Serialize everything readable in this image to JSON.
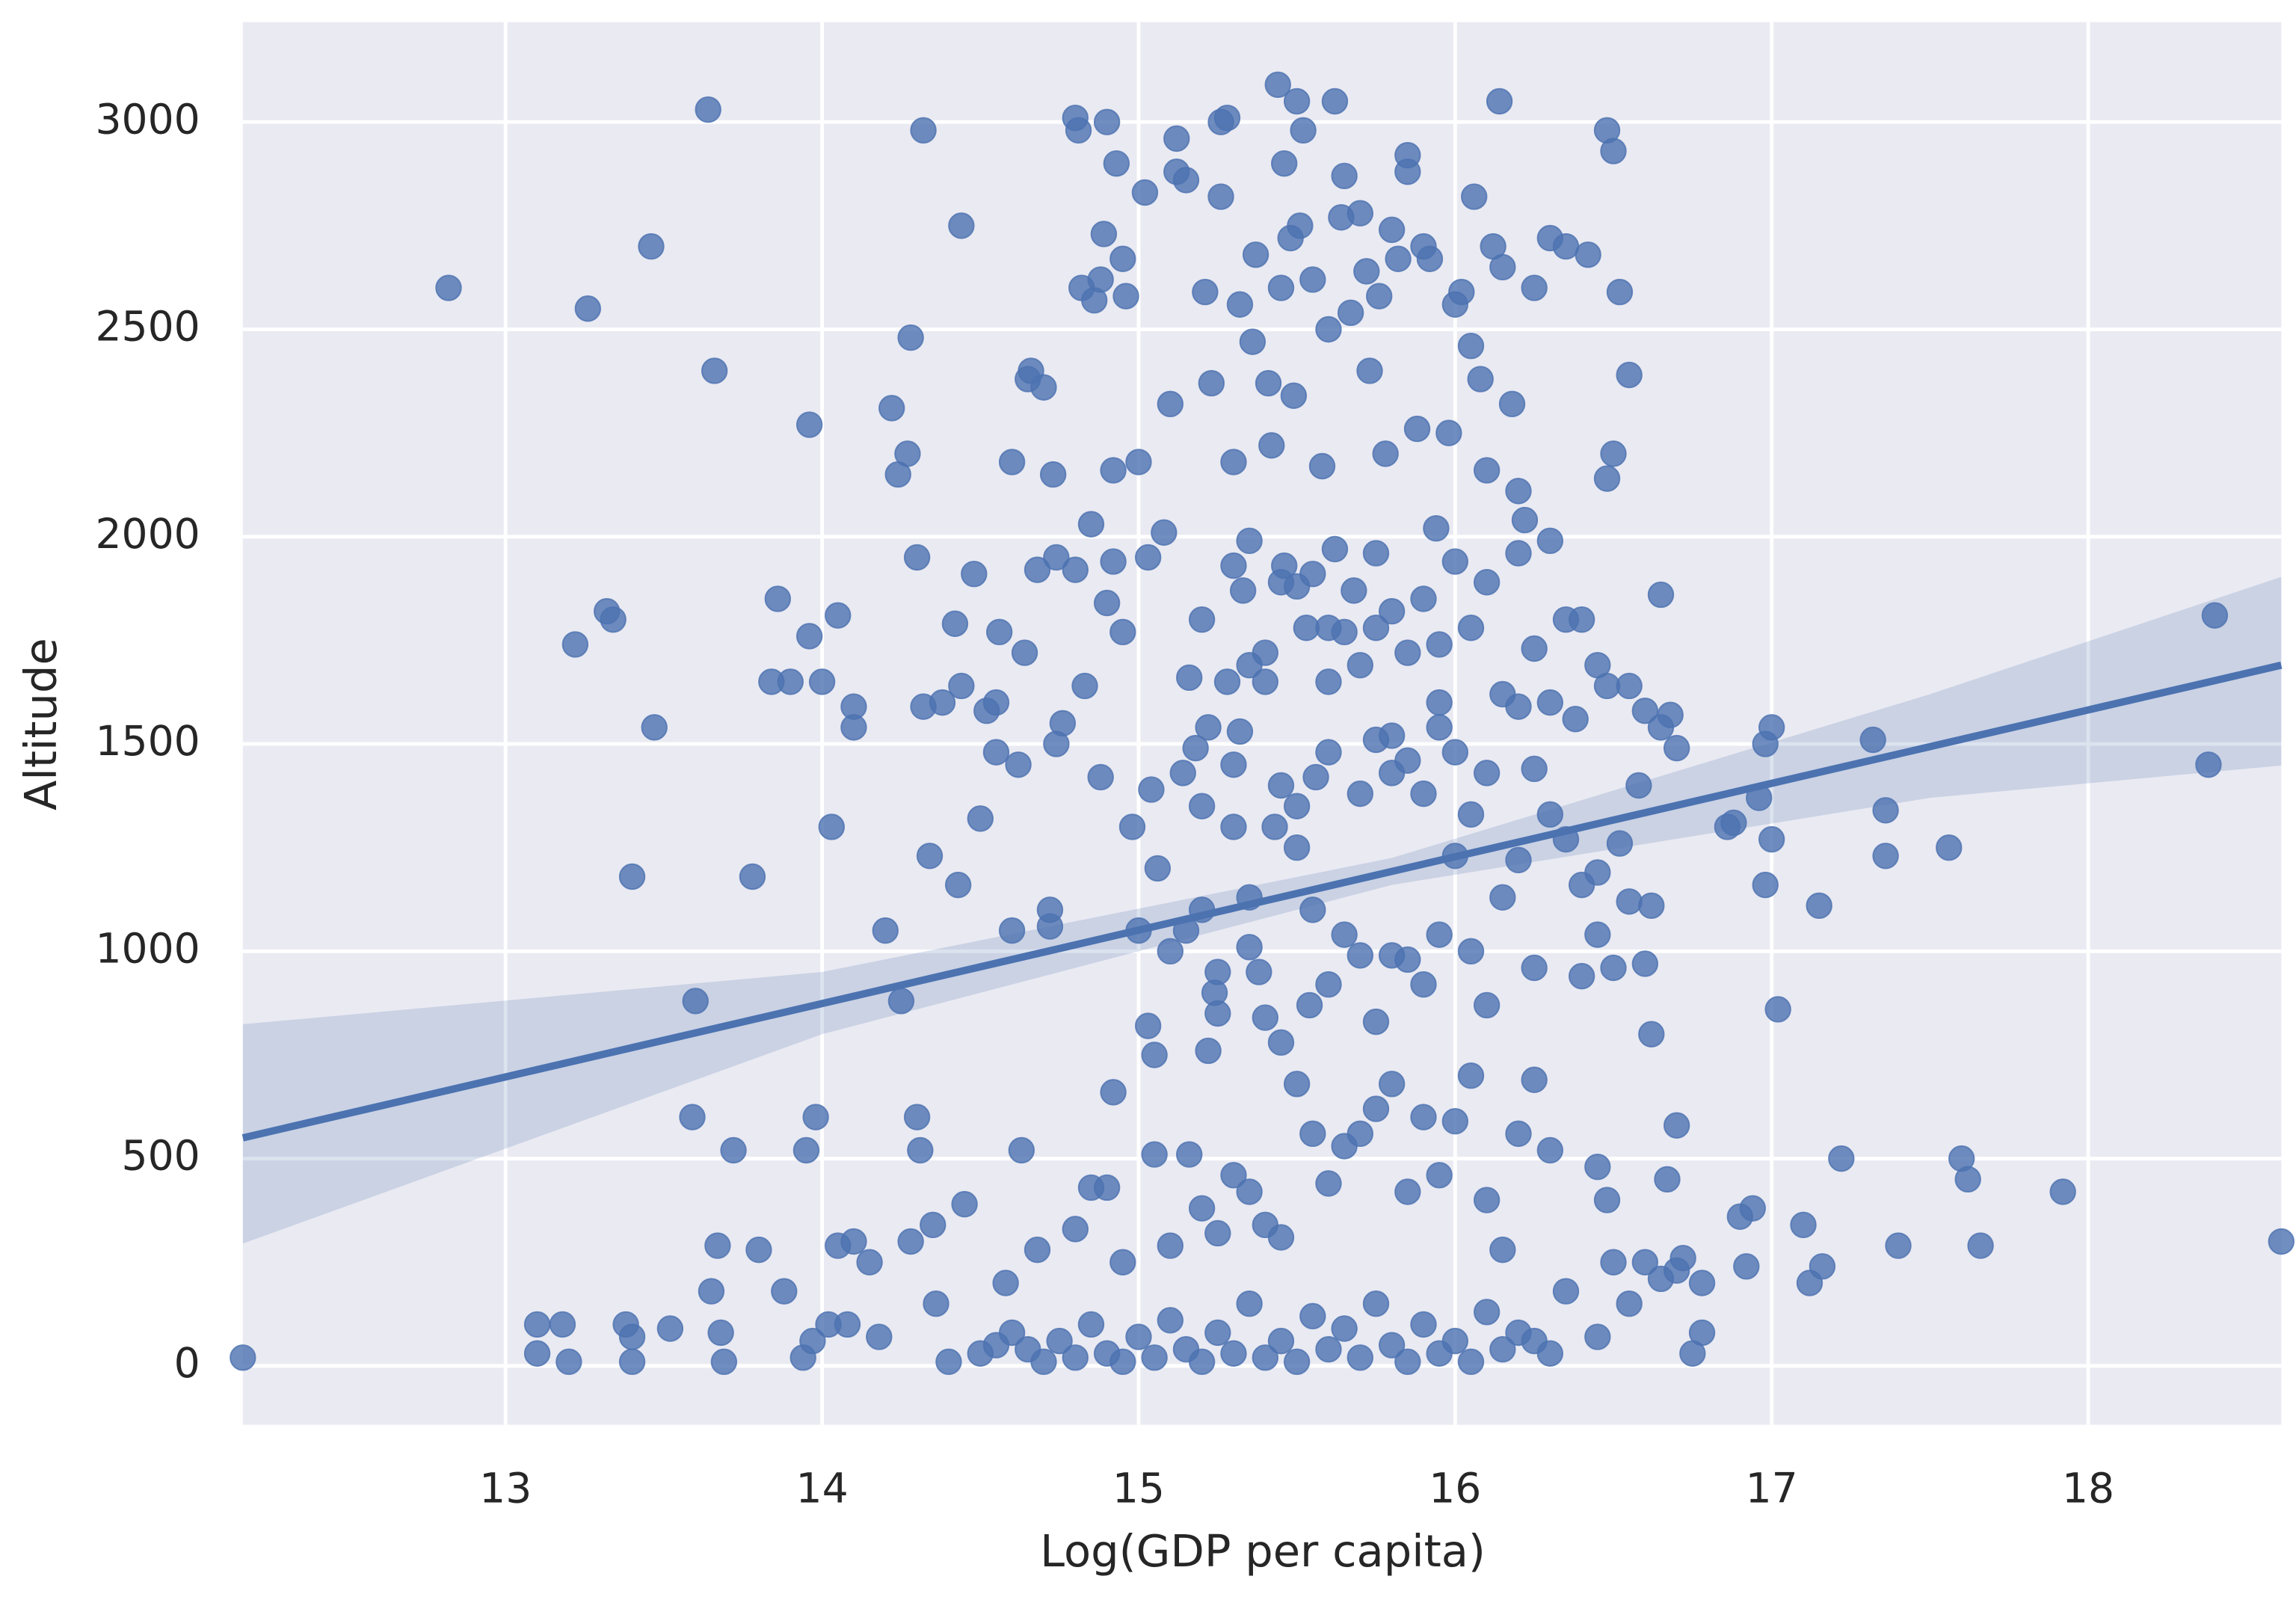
{
  "chart_data": {
    "type": "regplot",
    "xlabel": "Log(GDP per capita)",
    "ylabel": "Altitude",
    "xlim": [
      12.17,
      18.61
    ],
    "ylim": [
      -142,
      3241
    ],
    "xticks": [
      13,
      14,
      15,
      16,
      17,
      18
    ],
    "yticks": [
      0,
      500,
      1000,
      1500,
      2000,
      2500,
      3000
    ],
    "grid": true,
    "color": "#4c72b0",
    "x": [
      12.17,
      12.82,
      13.1,
      13.1,
      13.18,
      13.2,
      13.22,
      13.26,
      13.32,
      13.34,
      13.38,
      13.4,
      13.4,
      13.4,
      13.46,
      13.47,
      13.52,
      13.59,
      13.6,
      13.64,
      13.65,
      13.66,
      13.67,
      13.68,
      13.69,
      13.72,
      13.78,
      13.8,
      13.84,
      13.86,
      13.88,
      13.9,
      13.94,
      13.95,
      13.96,
      13.96,
      13.97,
      13.98,
      14.0,
      14.02,
      14.03,
      14.05,
      14.05,
      14.08,
      14.1,
      14.1,
      14.1,
      14.15,
      14.18,
      14.2,
      14.22,
      14.24,
      14.25,
      14.27,
      14.28,
      14.28,
      14.3,
      14.3,
      14.31,
      14.32,
      14.32,
      14.34,
      14.35,
      14.36,
      14.38,
      14.42,
      14.43,
      14.44,
      14.44,
      14.45,
      14.48,
      14.5,
      14.52,
      14.55,
      14.55,
      14.56,
      14.58,
      14.6,
      14.6,
      14.62,
      14.63,
      14.64,
      14.65,
      14.66,
      14.68,
      14.68,
      14.7,
      14.72,
      14.72,
      14.73,
      14.74,
      14.74,
      14.76,
      14.8,
      14.8,
      14.81,
      14.82,
      14.83,
      14.85,
      14.86,
      14.88,
      14.88,
      14.89,
      14.9,
      14.9,
      14.92,
      14.92,
      14.92,
      14.93,
      14.95,
      14.95,
      14.96,
      14.98,
      15.0,
      15.0,
      15.02,
      15.03,
      15.03,
      15.04,
      15.05,
      15.06,
      15.08,
      15.1,
      15.12,
      15.12,
      15.14,
      15.15,
      15.16,
      15.16,
      15.18,
      15.2,
      15.2,
      15.21,
      15.22,
      15.22,
      15.23,
      15.24,
      15.25,
      15.26,
      15.26,
      15.28,
      15.28,
      15.3,
      15.3,
      15.32,
      15.32,
      15.33,
      15.35,
      15.35,
      15.36,
      15.37,
      15.38,
      15.4,
      15.41,
      15.42,
      15.43,
      15.44,
      15.45,
      15.46,
      15.46,
      15.48,
      15.49,
      15.5,
      15.51,
      15.52,
      15.53,
      15.54,
      15.55,
      15.56,
      15.58,
      15.6,
      15.6,
      15.62,
      15.62,
      15.64,
      15.65,
      15.67,
      15.68,
      15.7,
      15.72,
      15.73,
      15.75,
      15.76,
      15.78,
      15.8,
      15.8,
      15.82,
      15.85,
      15.85,
      15.88,
      15.9,
      15.92,
      15.94,
      15.95,
      15.98,
      16.0,
      16.02,
      16.05,
      16.06,
      16.08,
      16.1,
      16.12,
      16.14,
      16.15,
      16.18,
      16.2,
      16.22,
      16.25,
      16.3,
      16.35,
      16.42,
      16.48,
      16.5,
      16.52,
      16.55,
      16.5,
      16.48,
      16.65,
      16.3,
      16.35,
      16.4,
      16.45,
      16.48,
      16.55,
      16.6,
      16.65,
      16.68,
      16.7,
      16.58,
      16.55,
      16.62,
      16.6,
      16.5,
      16.45,
      16.4,
      16.62,
      16.67,
      16.7,
      16.72,
      16.75,
      16.78,
      16.78,
      16.86,
      16.88,
      16.9,
      16.92,
      16.94,
      16.96,
      16.98,
      16.98,
      17.0,
      17.0,
      17.02,
      17.1,
      17.12,
      17.15,
      17.16,
      17.22,
      17.32,
      17.36,
      17.36,
      17.4,
      17.56,
      17.6,
      17.62,
      17.66,
      17.92,
      18.38,
      18.4,
      18.61,
      14.4,
      14.5,
      14.55,
      14.6,
      14.65,
      14.7,
      14.75,
      14.8,
      14.85,
      14.9,
      14.95,
      15.0,
      15.05,
      15.1,
      15.15,
      15.2,
      15.25,
      15.3,
      15.35,
      15.4,
      15.45,
      15.5,
      15.55,
      15.6,
      15.65,
      15.7,
      15.75,
      15.8,
      15.85,
      15.9,
      15.95,
      16.0,
      16.05,
      16.1,
      16.15,
      16.2,
      16.25,
      16.3,
      16.35,
      16.45,
      16.5,
      16.55,
      16.6,
      16.65,
      16.7,
      14.8,
      14.85,
      14.9,
      14.95,
      15.05,
      15.1,
      15.2,
      15.25,
      15.3,
      15.35,
      15.4,
      15.45,
      15.5,
      15.55,
      15.6,
      15.65,
      15.7,
      15.75,
      15.8,
      15.85,
      15.9,
      15.95,
      16.0,
      16.05,
      16.1,
      16.15,
      16.2,
      16.25,
      16.3,
      16.45,
      16.48,
      15.1,
      15.15,
      15.2,
      15.25,
      15.3,
      15.35,
      15.4,
      15.45,
      15.5,
      15.55,
      15.6,
      15.65,
      15.7,
      15.75,
      15.8,
      15.85,
      15.9,
      15.95,
      16.0,
      16.05,
      16.1,
      16.15,
      16.2,
      16.25,
      16.3,
      16.35,
      16.4,
      16.45,
      16.52,
      15.45,
      15.5,
      15.6,
      15.7,
      15.75,
      15.8,
      15.85,
      15.9,
      15.95,
      16.0,
      16.05,
      16.1,
      16.2,
      16.25,
      16.3,
      16.38,
      15.3,
      15.35,
      15.4,
      15.45,
      15.5,
      15.55,
      15.6,
      15.65,
      15.7,
      15.75,
      15.8,
      15.85,
      15.9,
      15.95,
      16.0,
      16.05,
      16.1,
      16.15,
      16.2,
      16.25
    ],
    "y": [
      20,
      2600,
      30,
      100,
      100,
      10,
      1740,
      2550,
      1820,
      1800,
      100,
      70,
      10,
      1180,
      2700,
      1540,
      90,
      600,
      880,
      3030,
      180,
      2400,
      290,
      80,
      10,
      520,
      1180,
      280,
      1650,
      1850,
      180,
      1650,
      20,
      520,
      1760,
      2270,
      60,
      600,
      1650,
      100,
      1300,
      1810,
      290,
      100,
      300,
      1590,
      1540,
      250,
      70,
      1050,
      2310,
      2150,
      880,
      2200,
      2480,
      300,
      600,
      1950,
      520,
      2980,
      1590,
      1230,
      340,
      150,
      1600,
      1790,
      1160,
      2750,
      1640,
      390,
      1910,
      1320,
      1580,
      1600,
      1480,
      1770,
      200,
      2180,
      1050,
      1450,
      520,
      1720,
      2380,
      2400,
      1920,
      280,
      2360,
      1060,
      1100,
      2150,
      1950,
      1500,
      1550,
      1920,
      3010,
      2980,
      2600,
      1640,
      2030,
      2570,
      1420,
      2620,
      2730,
      1840,
      3000,
      2160,
      1940,
      660,
      2900,
      2670,
      1770,
      2580,
      1300,
      2180,
      1050,
      2830,
      820,
      1950,
      1390,
      750,
      1200,
      2010,
      2320,
      2960,
      2880,
      1430,
      2860,
      1660,
      510,
      1490,
      1350,
      1800,
      2590,
      1540,
      760,
      2370,
      900,
      850,
      2820,
      3000,
      3010,
      1650,
      1450,
      2180,
      2560,
      1530,
      1870,
      1990,
      1130,
      2470,
      2680,
      950,
      1720,
      2370,
      2220,
      1300,
      3090,
      2600,
      2900,
      1930,
      2720,
      2340,
      3050,
      2750,
      2980,
      1780,
      870,
      2620,
      1420,
      2170,
      2500,
      1650,
      3050,
      1970,
      2770,
      2870,
      2540,
      1870,
      2780,
      2640,
      2400,
      1780,
      2580,
      2200,
      2740,
      1520,
      2670,
      2920,
      2880,
      2260,
      2700,
      2670,
      2020,
      1740,
      2250,
      2560,
      2590,
      2460,
      2820,
      2380,
      2160,
      2700,
      3050,
      2650,
      2320,
      2110,
      2040,
      2600,
      2720,
      2700,
      2680,
      2980,
      2930,
      2590,
      2390,
      2200,
      2140,
      1860,
      1990,
      1800,
      1800,
      1690,
      1640,
      1640,
      1580,
      1540,
      1570,
      1490,
      1400,
      1120,
      1110,
      970,
      960,
      1040,
      940,
      800,
      450,
      580,
      260,
      30,
      80,
      200,
      1300,
      1310,
      360,
      240,
      380,
      1370,
      1500,
      1160,
      1540,
      1270,
      860,
      340,
      200,
      1110,
      240,
      500,
      1510,
      1340,
      1230,
      290,
      1250,
      500,
      450,
      290,
      420,
      1450,
      1810,
      300,
      10,
      30,
      50,
      80,
      40,
      10,
      60,
      20,
      100,
      30,
      10,
      70,
      20,
      110,
      40,
      10,
      80,
      30,
      150,
      20,
      60,
      10,
      120,
      40,
      90,
      20,
      150,
      50,
      10,
      100,
      30,
      60,
      10,
      130,
      40,
      80,
      60,
      30,
      180,
      70,
      250,
      150,
      250,
      210,
      230,
      330,
      430,
      430,
      250,
      510,
      290,
      380,
      320,
      460,
      420,
      340,
      310,
      680,
      560,
      440,
      530,
      560,
      620,
      680,
      420,
      600,
      460,
      590,
      700,
      400,
      280,
      560,
      690,
      520,
      480,
      400,
      1000,
      1050,
      1100,
      950,
      1300,
      1010,
      840,
      780,
      1250,
      1100,
      920,
      1040,
      990,
      830,
      990,
      980,
      920,
      1040,
      1230,
      1000,
      870,
      1130,
      1220,
      960,
      1330,
      1270,
      1160,
      1190,
      1260,
      1400,
      1350,
      1480,
      1380,
      1510,
      1430,
      1460,
      1380,
      1540,
      1480,
      1330,
      1430,
      1590,
      1440,
      1600,
      1560,
      1930,
      1690,
      1650,
      1890,
      1880,
      1910,
      1780,
      1770,
      1690,
      1960,
      1820,
      1720,
      1850,
      1600,
      1940,
      1780,
      1890,
      1620,
      1960,
      1730
    ],
    "regression": {
      "x": [
        12.17,
        18.61
      ],
      "y": [
        550,
        1690
      ]
    },
    "ci_band": {
      "x": [
        12.17,
        14.0,
        15.8,
        17.5,
        18.61
      ],
      "upper": [
        824,
        950,
        1225,
        1620,
        1903
      ],
      "lower": [
        295,
        800,
        1160,
        1370,
        1448
      ]
    }
  }
}
